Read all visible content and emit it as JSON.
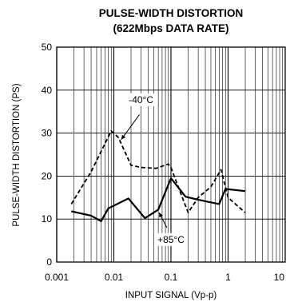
{
  "chart_data": {
    "type": "line",
    "title": "PULSE-WIDTH DISTORTION",
    "subtitle": "(622Mbps DATA RATE)",
    "xlabel": "INPUT SIGNAL (Vp-p)",
    "ylabel": "PULSE-WIDTH DISTORTION (PS)",
    "x_scale": "log",
    "xlim": [
      0.001,
      10
    ],
    "ylim": [
      0,
      50
    ],
    "x_ticks": [
      {
        "value": 0.001,
        "label": "0.001"
      },
      {
        "value": 0.01,
        "label": "0.01"
      },
      {
        "value": 0.1,
        "label": "0.1"
      },
      {
        "value": 1,
        "label": "1"
      },
      {
        "value": 10,
        "label": "10"
      }
    ],
    "y_ticks": [
      {
        "value": 0,
        "label": "0"
      },
      {
        "value": 10,
        "label": "10"
      },
      {
        "value": 20,
        "label": "20"
      },
      {
        "value": 30,
        "label": "30"
      },
      {
        "value": 40,
        "label": "40"
      },
      {
        "value": 50,
        "label": "50"
      }
    ],
    "grid": true,
    "series": [
      {
        "name": "-40°C",
        "style": "dashed",
        "points": [
          [
            0.0018,
            13.5
          ],
          [
            0.004,
            21
          ],
          [
            0.009,
            30.5
          ],
          [
            0.012,
            29
          ],
          [
            0.02,
            22.5
          ],
          [
            0.03,
            22
          ],
          [
            0.055,
            21.8
          ],
          [
            0.09,
            22.8
          ],
          [
            0.1,
            22
          ],
          [
            0.13,
            18
          ],
          [
            0.2,
            11.5
          ],
          [
            0.3,
            15
          ],
          [
            0.5,
            17.5
          ],
          [
            0.75,
            21.5
          ],
          [
            1.0,
            15
          ],
          [
            2.0,
            11.5
          ]
        ]
      },
      {
        "name": "+85°C",
        "style": "solid",
        "points": [
          [
            0.0018,
            11.8
          ],
          [
            0.004,
            10.8
          ],
          [
            0.006,
            9.5
          ],
          [
            0.008,
            12.5
          ],
          [
            0.018,
            14.8
          ],
          [
            0.035,
            10.2
          ],
          [
            0.06,
            12.2
          ],
          [
            0.1,
            19.5
          ],
          [
            0.18,
            15.2
          ],
          [
            0.3,
            14.5
          ],
          [
            0.7,
            13.5
          ],
          [
            0.9,
            17
          ],
          [
            2.0,
            16.5
          ]
        ]
      }
    ],
    "annotations": [
      {
        "text": "-40°C",
        "series": 0
      },
      {
        "text": "+85°C",
        "series": 1
      }
    ]
  }
}
